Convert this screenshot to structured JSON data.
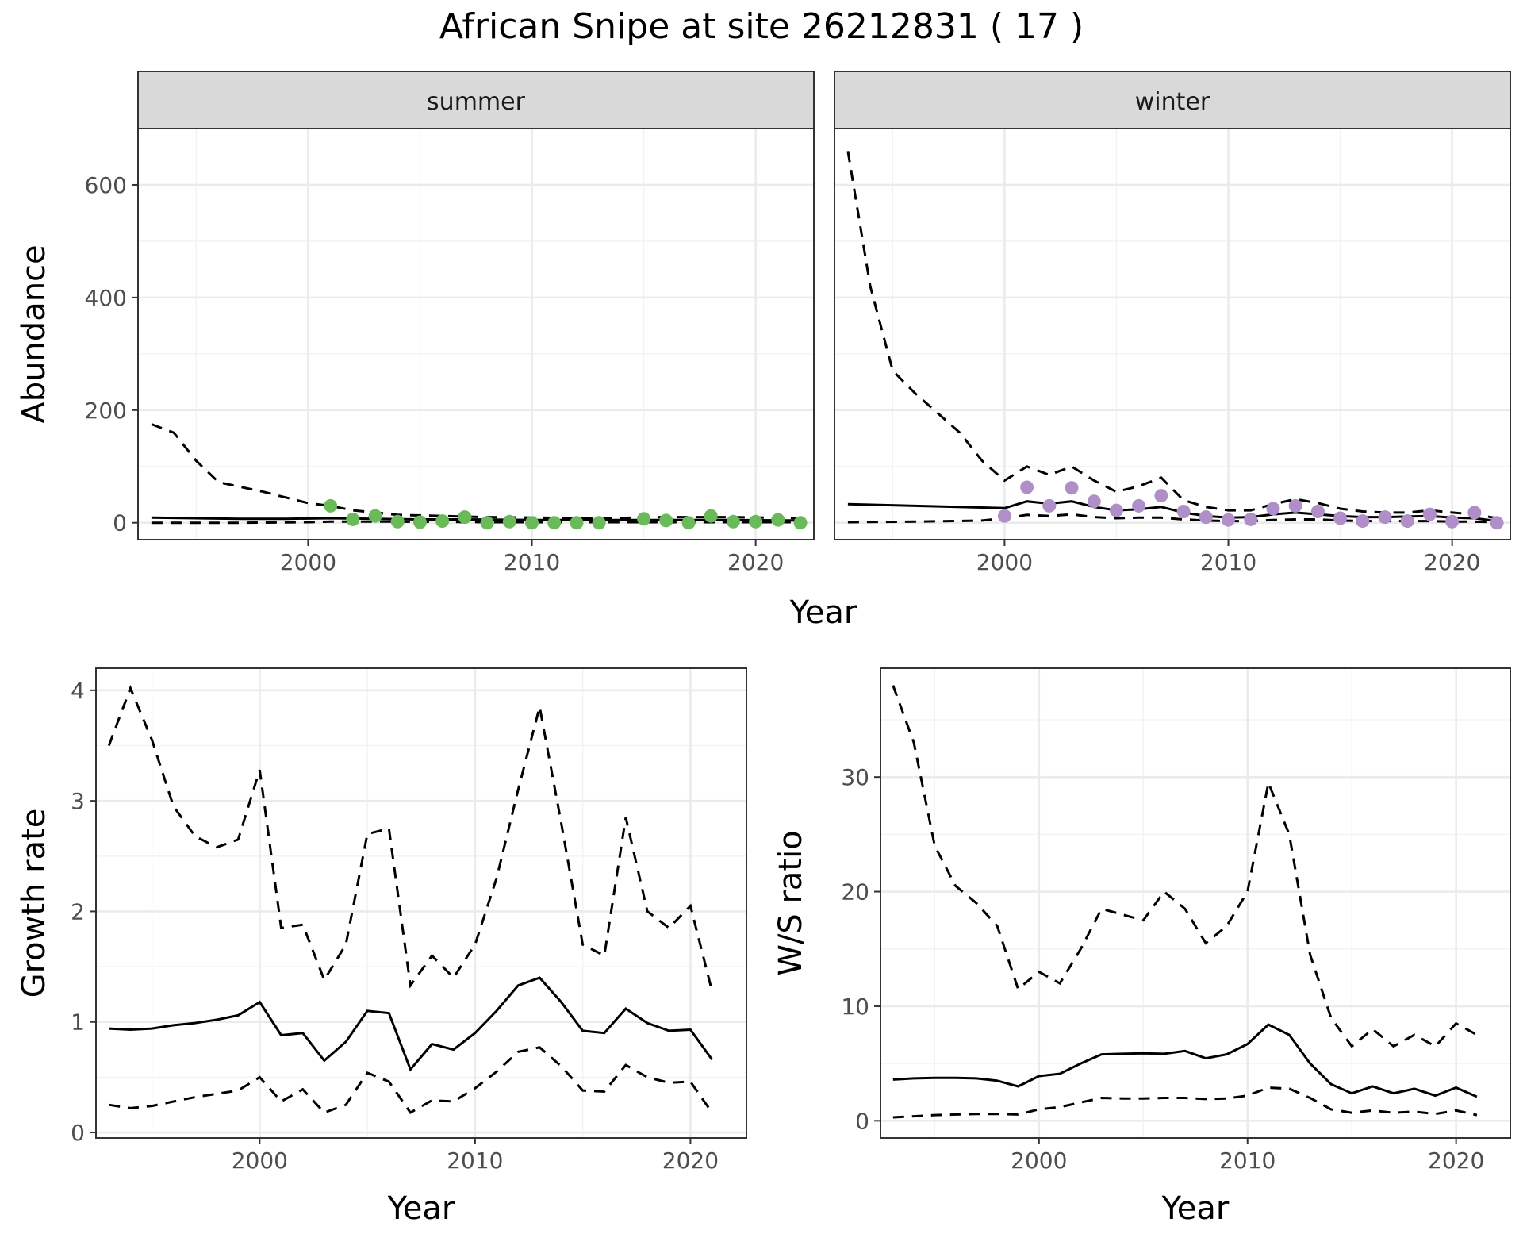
{
  "title": "African Snipe at site 26212831 ( 17 )",
  "colors": {
    "summer": "#6aba5a",
    "winter": "#b08ec8"
  },
  "chart_data": [
    {
      "type": "line",
      "facet": "summer",
      "xlabel": "Year",
      "ylabel": "Abundance",
      "xlim": [
        1992.4,
        2022.6
      ],
      "ylim": [
        -30,
        700
      ],
      "xticks": [
        2000,
        2010,
        2020
      ],
      "yticks": [
        0,
        200,
        400,
        600
      ],
      "grid": true,
      "series": [
        {
          "role": "estimate",
          "x": [
            1993,
            1995,
            1997,
            1999,
            2001,
            2003,
            2005,
            2007,
            2010,
            2013,
            2016,
            2019,
            2022
          ],
          "values": [
            9,
            8,
            7,
            7,
            8,
            7,
            6,
            6,
            5,
            5,
            5,
            5,
            4
          ]
        },
        {
          "role": "upper",
          "x": [
            1993,
            1994,
            1995,
            1996,
            1998,
            2000,
            2001,
            2002,
            2003,
            2004,
            2006,
            2008,
            2010,
            2013,
            2016,
            2019,
            2022
          ],
          "values": [
            175,
            160,
            110,
            72,
            55,
            35,
            30,
            22,
            18,
            14,
            12,
            10,
            9,
            8,
            10,
            10,
            8
          ]
        },
        {
          "role": "lower",
          "x": [
            1993,
            1997,
            2000,
            2001,
            2004,
            2008,
            2012,
            2016,
            2020,
            2022
          ],
          "values": [
            0,
            0,
            1,
            2,
            2,
            1,
            1,
            1,
            1,
            1
          ]
        },
        {
          "role": "observed",
          "x": [
            2001,
            2002,
            2003,
            2004,
            2005,
            2006,
            2007,
            2008,
            2009,
            2010,
            2011,
            2012,
            2013,
            2015,
            2016,
            2017,
            2018,
            2019,
            2020,
            2021,
            2022
          ],
          "values": [
            30,
            6,
            12,
            2,
            1,
            3,
            10,
            0,
            2,
            0,
            0,
            0,
            0,
            7,
            4,
            0,
            12,
            2,
            2,
            5,
            0
          ]
        }
      ]
    },
    {
      "type": "line",
      "facet": "winter",
      "xlabel": "Year",
      "ylabel": "Abundance",
      "xlim": [
        1992.4,
        2022.6
      ],
      "ylim": [
        -30,
        700
      ],
      "xticks": [
        2000,
        2010,
        2020
      ],
      "yticks": [
        0,
        200,
        400,
        600
      ],
      "grid": true,
      "series": [
        {
          "role": "estimate",
          "x": [
            1993,
            1996,
            2000,
            2001,
            2002,
            2003,
            2004,
            2005,
            2006,
            2007,
            2008,
            2009,
            2010,
            2011,
            2012,
            2013,
            2014,
            2015,
            2016,
            2017,
            2018,
            2019,
            2020,
            2021,
            2022
          ],
          "values": [
            33,
            30,
            26,
            38,
            34,
            38,
            28,
            22,
            24,
            28,
            18,
            12,
            9,
            10,
            15,
            18,
            15,
            12,
            10,
            10,
            11,
            12,
            9,
            8,
            3
          ]
        },
        {
          "role": "upper",
          "x": [
            1993,
            1994,
            1995,
            1996,
            1997,
            1998,
            1999,
            2000,
            2001,
            2002,
            2003,
            2004,
            2005,
            2006,
            2007,
            2008,
            2009,
            2010,
            2011,
            2012,
            2013,
            2014,
            2015,
            2016,
            2017,
            2018,
            2019,
            2020,
            2021,
            2022
          ],
          "values": [
            660,
            420,
            270,
            230,
            195,
            160,
            110,
            75,
            100,
            85,
            100,
            75,
            55,
            65,
            80,
            40,
            28,
            22,
            22,
            33,
            42,
            35,
            25,
            20,
            18,
            18,
            22,
            18,
            15,
            8
          ]
        },
        {
          "role": "lower",
          "x": [
            1993,
            1996,
            1999,
            2000,
            2001,
            2002,
            2003,
            2004,
            2005,
            2006,
            2007,
            2008,
            2009,
            2010,
            2011,
            2012,
            2013,
            2014,
            2015,
            2016,
            2017,
            2018,
            2019,
            2020,
            2021,
            2022
          ],
          "values": [
            1,
            2,
            4,
            8,
            14,
            12,
            15,
            10,
            8,
            9,
            9,
            6,
            4,
            3,
            3,
            5,
            6,
            6,
            4,
            3,
            3,
            3,
            3,
            2,
            2,
            1
          ]
        },
        {
          "role": "observed",
          "x": [
            2000,
            2001,
            2002,
            2003,
            2004,
            2005,
            2006,
            2007,
            2008,
            2009,
            2010,
            2011,
            2012,
            2013,
            2014,
            2015,
            2016,
            2017,
            2018,
            2019,
            2020,
            2021,
            2022
          ],
          "values": [
            12,
            63,
            30,
            62,
            38,
            22,
            30,
            48,
            20,
            10,
            5,
            6,
            25,
            30,
            20,
            8,
            3,
            10,
            3,
            15,
            2,
            18,
            0
          ]
        }
      ]
    },
    {
      "type": "line",
      "xlabel": "Year",
      "ylabel": "Growth rate",
      "xlim": [
        1992.4,
        2022.6
      ],
      "ylim": [
        -0.05,
        4.2
      ],
      "xticks": [
        2000,
        2010,
        2020
      ],
      "yticks": [
        0,
        1,
        2,
        3,
        4
      ],
      "grid": true,
      "series": [
        {
          "role": "estimate",
          "x": [
            1993,
            1994,
            1995,
            1996,
            1997,
            1998,
            1999,
            2000,
            2001,
            2002,
            2003,
            2004,
            2005,
            2006,
            2007,
            2008,
            2009,
            2010,
            2011,
            2012,
            2013,
            2014,
            2015,
            2016,
            2017,
            2018,
            2019,
            2020,
            2021
          ],
          "values": [
            0.94,
            0.93,
            0.94,
            0.97,
            0.99,
            1.02,
            1.06,
            1.18,
            0.88,
            0.9,
            0.65,
            0.82,
            1.1,
            1.08,
            0.57,
            0.8,
            0.75,
            0.9,
            1.1,
            1.33,
            1.4,
            1.18,
            0.92,
            0.9,
            1.12,
            0.99,
            0.92,
            0.93,
            0.66
          ]
        },
        {
          "role": "upper",
          "x": [
            1993,
            1994,
            1995,
            1996,
            1997,
            1998,
            1999,
            2000,
            2001,
            2002,
            2003,
            2004,
            2005,
            2006,
            2007,
            2008,
            2009,
            2010,
            2011,
            2012,
            2013,
            2014,
            2015,
            2016,
            2017,
            2018,
            2019,
            2020,
            2021
          ],
          "values": [
            3.5,
            4.02,
            3.55,
            2.95,
            2.68,
            2.58,
            2.65,
            3.28,
            1.85,
            1.88,
            1.38,
            1.7,
            2.7,
            2.75,
            1.33,
            1.6,
            1.4,
            1.7,
            2.3,
            3.1,
            3.85,
            2.8,
            1.7,
            1.6,
            2.85,
            2.0,
            1.85,
            2.05,
            1.28
          ]
        },
        {
          "role": "lower",
          "x": [
            1993,
            1994,
            1995,
            1996,
            1997,
            1998,
            1999,
            2000,
            2001,
            2002,
            2003,
            2004,
            2005,
            2006,
            2007,
            2008,
            2009,
            2010,
            2011,
            2012,
            2013,
            2014,
            2015,
            2016,
            2017,
            2018,
            2019,
            2020,
            2021
          ],
          "values": [
            0.25,
            0.22,
            0.24,
            0.28,
            0.32,
            0.35,
            0.38,
            0.5,
            0.28,
            0.39,
            0.18,
            0.25,
            0.54,
            0.46,
            0.18,
            0.29,
            0.28,
            0.4,
            0.55,
            0.73,
            0.77,
            0.6,
            0.38,
            0.37,
            0.61,
            0.5,
            0.45,
            0.46,
            0.18
          ]
        }
      ]
    },
    {
      "type": "line",
      "xlabel": "Year",
      "ylabel": "W/S ratio",
      "xlim": [
        1992.4,
        2022.6
      ],
      "ylim": [
        -1.5,
        39.5
      ],
      "xticks": [
        2000,
        2010,
        2020
      ],
      "yticks": [
        0,
        10,
        20,
        30
      ],
      "grid": true,
      "series": [
        {
          "role": "estimate",
          "x": [
            1993,
            1994,
            1995,
            1996,
            1997,
            1998,
            1999,
            2000,
            2001,
            2002,
            2003,
            2004,
            2005,
            2006,
            2007,
            2008,
            2009,
            2010,
            2011,
            2012,
            2013,
            2014,
            2015,
            2016,
            2017,
            2018,
            2019,
            2020,
            2021
          ],
          "values": [
            3.6,
            3.7,
            3.75,
            3.75,
            3.7,
            3.5,
            3.0,
            3.9,
            4.1,
            5.0,
            5.8,
            5.85,
            5.9,
            5.85,
            6.1,
            5.45,
            5.8,
            6.7,
            8.4,
            7.5,
            5.0,
            3.2,
            2.4,
            3.0,
            2.4,
            2.8,
            2.2,
            2.9,
            2.1
          ]
        },
        {
          "role": "upper",
          "x": [
            1993,
            1994,
            1995,
            1996,
            1997,
            1998,
            1999,
            2000,
            2001,
            2002,
            2003,
            2004,
            2005,
            2006,
            2007,
            2008,
            2009,
            2010,
            2011,
            2012,
            2013,
            2014,
            2015,
            2016,
            2017,
            2018,
            2019,
            2020,
            2021
          ],
          "values": [
            38,
            33,
            24,
            20.5,
            19,
            17,
            11.5,
            13,
            12,
            15,
            18.5,
            18,
            17.5,
            20,
            18.5,
            15.5,
            17,
            20,
            29.5,
            25,
            14.5,
            9,
            6.5,
            8,
            6.5,
            7.5,
            6.5,
            8.5,
            7.5
          ]
        },
        {
          "role": "lower",
          "x": [
            1993,
            1994,
            1995,
            1996,
            1997,
            1998,
            1999,
            2000,
            2001,
            2002,
            2003,
            2004,
            2005,
            2006,
            2007,
            2008,
            2009,
            2010,
            2011,
            2012,
            2013,
            2014,
            2015,
            2016,
            2017,
            2018,
            2019,
            2020,
            2021
          ],
          "values": [
            0.3,
            0.4,
            0.5,
            0.55,
            0.6,
            0.6,
            0.55,
            1.0,
            1.2,
            1.6,
            2.0,
            1.95,
            1.95,
            2.0,
            2.0,
            1.9,
            1.95,
            2.2,
            2.9,
            2.8,
            2.0,
            1.0,
            0.7,
            0.9,
            0.7,
            0.8,
            0.6,
            0.9,
            0.5
          ]
        }
      ]
    }
  ]
}
